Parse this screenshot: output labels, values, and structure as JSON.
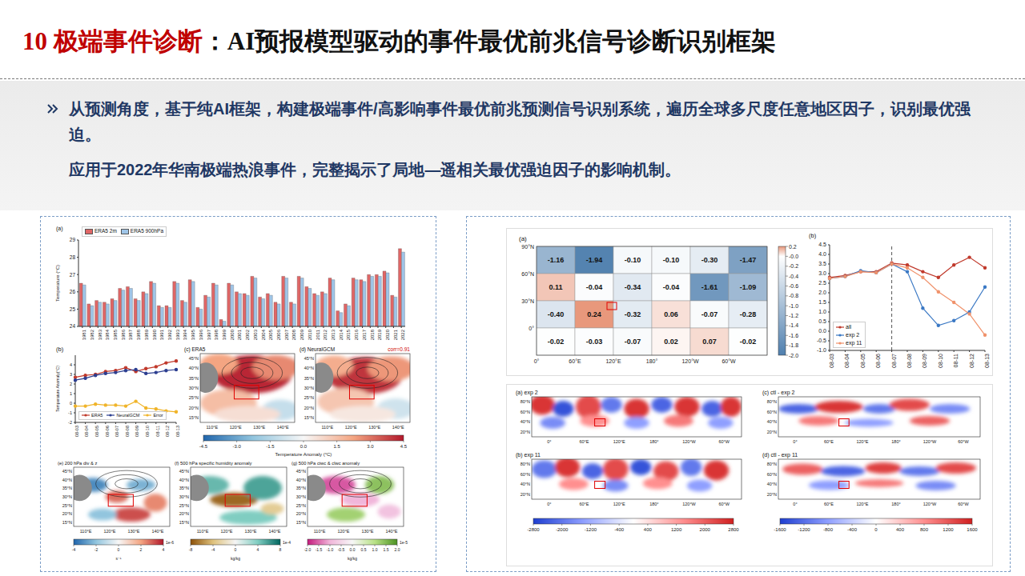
{
  "header": {
    "number": "10 极端事件诊断",
    "title": "：AI预报模型驱动的事件最优前兆信号诊断识别框架"
  },
  "bullets": [
    "从预测角度，基于纯AI框架，构建极端事件/高影响事件最优前兆预测信号识别系统，遍历全球多尺度任意地区因子，识别最优强迫。",
    "应用于2022年华南极端热浪事件，完整揭示了局地—遥相关最优强迫因子的影响机制。"
  ],
  "chart_data": [
    {
      "type": "bar",
      "title": "(a)",
      "ylabel": "Temperature (°C)",
      "categories": [
        "1981",
        "1982",
        "1983",
        "1984",
        "1985",
        "1986",
        "1987",
        "1988",
        "1989",
        "1990",
        "1991",
        "1992",
        "1993",
        "1994",
        "1995",
        "1996",
        "1997",
        "1998",
        "1999",
        "2000",
        "2001",
        "2002",
        "2003",
        "2004",
        "2005",
        "2006",
        "2007",
        "2008",
        "2009",
        "2010",
        "2011",
        "2012",
        "2013",
        "2014",
        "2015",
        "2016",
        "2017",
        "2018",
        "2019",
        "2020",
        "2021",
        "2022"
      ],
      "series": [
        {
          "name": "ERA5 2m",
          "color": "#e06666",
          "values": [
            26.5,
            25.3,
            25.5,
            25.4,
            25.6,
            26.2,
            26.3,
            25.6,
            26.0,
            26.6,
            25.2,
            25.2,
            26.6,
            25.5,
            26.7,
            25.1,
            25.8,
            26.5,
            24.4,
            26.5,
            26.0,
            25.9,
            26.9,
            25.7,
            25.9,
            25.4,
            26.9,
            25.4,
            26.9,
            26.3,
            25.9,
            26.0,
            26.8,
            24.9,
            25.3,
            26.8,
            26.7,
            27.0,
            27.0,
            27.2,
            25.8,
            28.5
          ]
        },
        {
          "name": "ERA5 900hPa",
          "color": "#9fc5e8",
          "values": [
            26.4,
            25.2,
            25.4,
            25.3,
            25.5,
            26.1,
            26.2,
            25.5,
            25.9,
            26.5,
            25.1,
            25.1,
            26.5,
            25.4,
            26.6,
            25.0,
            25.7,
            26.4,
            24.3,
            26.4,
            25.9,
            25.8,
            26.8,
            25.6,
            25.8,
            25.3,
            26.8,
            25.3,
            26.8,
            26.2,
            25.8,
            25.9,
            26.7,
            24.8,
            25.2,
            26.7,
            26.6,
            26.9,
            26.9,
            27.1,
            25.7,
            28.3
          ]
        }
      ],
      "ylim": [
        24,
        29
      ],
      "yticks": [
        24,
        25,
        26,
        27,
        28,
        29
      ],
      "legend": "top left"
    },
    {
      "type": "line",
      "title": "(b)",
      "ylabel": "Temperature Anomaly(°C)",
      "categories": [
        "08-03",
        "08-04",
        "08-05",
        "08-06",
        "08-07",
        "08-08",
        "08-09",
        "08-10",
        "08-11",
        "08-12",
        "08-13"
      ],
      "series": [
        {
          "name": "ERA5",
          "color": "#c0392b",
          "values": [
            2.7,
            2.9,
            3.0,
            3.3,
            3.4,
            3.7,
            3.3,
            3.6,
            3.8,
            4.2,
            4.4
          ]
        },
        {
          "name": "NeuralGCM",
          "color": "#2c3e90",
          "values": [
            2.4,
            2.6,
            2.9,
            3.1,
            3.2,
            3.4,
            3.5,
            3.1,
            3.2,
            3.4,
            3.5
          ]
        },
        {
          "name": "Error",
          "color": "#f0b429",
          "values": [
            -0.3,
            -0.3,
            -0.1,
            -0.2,
            -0.2,
            -0.3,
            0.2,
            -0.5,
            -0.6,
            -0.8,
            -0.9
          ]
        }
      ],
      "ylim": [
        -2,
        5
      ],
      "yticks": [
        -2,
        -1,
        0,
        1,
        2,
        3,
        4
      ],
      "legend": "lower left",
      "marker": "o"
    },
    {
      "type": "map",
      "title": "(c) ERA5",
      "lon_ticks": [
        "110°E",
        "120°E",
        "130°E",
        "140°E"
      ],
      "lat_ticks": [
        "15°N",
        "20°N",
        "25°N",
        "30°N",
        "35°N",
        "40°N",
        "45°N"
      ]
    },
    {
      "type": "map",
      "title": "(d) NeuralGCM",
      "annotation": "corr=0.91",
      "lon_ticks": [
        "110°E",
        "120°E",
        "130°E",
        "140°E"
      ],
      "lat_ticks": [
        "15°N",
        "20°N",
        "25°N",
        "30°N",
        "35°N",
        "40°N",
        "45°N"
      ]
    },
    {
      "type": "colorbar",
      "label": "Temperature Anomaly (°C)",
      "range": [
        -4.5,
        4.5
      ],
      "ticks": [
        -4.5,
        {
          "value": -3,
          "label": "-3.0"
        },
        -1.5,
        {
          "value": 0,
          "label": "0.0"
        },
        1.5,
        {
          "value": 3,
          "label": "3.0"
        },
        4.5
      ]
    },
    {
      "type": "map",
      "title": "(e) 200 hPa div & z",
      "lon_ticks": [
        "110°E",
        "120°E",
        "130°E",
        "140°E"
      ],
      "lat_ticks": [
        "15°N",
        "20°N",
        "25°N",
        "30°N",
        "35°N",
        "40°N",
        "45°N"
      ],
      "colorbar": {
        "unit": "s⁻¹",
        "exponent": "1e-6",
        "range": [
          -4,
          4
        ],
        "ticks": [
          -4,
          -2,
          0,
          2,
          4
        ]
      }
    },
    {
      "type": "map",
      "title": "(f) 500 hPa specific humidity anomaly",
      "lon_ticks": [
        "110°E",
        "120°E",
        "130°E",
        "140°E"
      ],
      "lat_ticks": [
        "15°N",
        "20°N",
        "25°N",
        "30°N",
        "35°N",
        "40°N",
        "45°N"
      ],
      "colorbar": {
        "unit": "kg/kg",
        "exponent": "1e-4",
        "range": [
          -8,
          8
        ],
        "ticks": [
          -8,
          -4,
          0,
          4,
          8
        ]
      }
    },
    {
      "type": "map",
      "title": "(g) 500 hPa ciwc & clwc anomaly",
      "lon_ticks": [
        "110°E",
        "120°E",
        "130°E",
        "140°E"
      ],
      "lat_ticks": [
        "15°N",
        "20°N",
        "25°N",
        "30°N",
        "35°N",
        "40°N",
        "45°N"
      ],
      "colorbar": {
        "unit": "kg/kg",
        "exponent": "1e-5",
        "range": [
          -2,
          2
        ],
        "ticks": [
          {
            "value": -2,
            "label": "-2.0"
          },
          -1.5,
          {
            "value": -1,
            "label": "-1.0"
          },
          -0.5,
          {
            "value": 0,
            "label": "0.0"
          },
          0.5,
          {
            "value": 1,
            "label": "1.0"
          },
          1.5,
          {
            "value": 2,
            "label": "2.0"
          }
        ]
      }
    },
    {
      "type": "heatmap",
      "title": "(a)",
      "row_labels": [
        "90°N",
        "60°N",
        "30°N",
        "0°"
      ],
      "col_labels": [
        "0°",
        "60°E",
        "120°E",
        "180°",
        "120°W",
        "60°W"
      ],
      "values": [
        [
          -1.16,
          -1.94,
          -0.1,
          -0.1,
          -0.3,
          -1.47
        ],
        [
          0.11,
          -0.04,
          -0.34,
          -0.04,
          -1.61,
          -1.09
        ],
        [
          -0.4,
          0.24,
          -0.32,
          0.06,
          -0.07,
          -0.28
        ],
        [
          -0.02,
          -0.03,
          -0.07,
          0.02,
          0.07,
          -0.02
        ]
      ],
      "value_labels": [
        [
          "-1.16",
          "-1.94",
          "-0.10",
          "-0.10",
          "-0.30",
          "-1.47"
        ],
        [
          "0.11",
          "-0.04",
          "-0.34",
          "-0.04",
          "-1.61",
          "-1.09"
        ],
        [
          "-0.40",
          "0.24",
          "-0.32",
          "0.06",
          "-0.07",
          "-0.28"
        ],
        [
          "-0.02",
          "-0.03",
          "-0.07",
          "0.02",
          "0.07",
          "-0.02"
        ]
      ],
      "colorbar": {
        "range": [
          -2.0,
          0.2
        ],
        "ticks": [
          0.2,
          {
            "value": 0,
            "label": "-0.0"
          },
          -0.2,
          -0.4,
          -0.6,
          -0.8,
          {
            "value": -1,
            "label": "-1.0"
          },
          -1.2,
          -1.4,
          -1.6,
          -1.8,
          {
            "value": -2,
            "label": "-2.0"
          }
        ]
      }
    },
    {
      "type": "line",
      "title": "(b)",
      "categories": [
        "08-03",
        "08-04",
        "08-05",
        "08-06",
        "08-07",
        "08-08",
        "08-09",
        "08-10",
        "08-11",
        "08-12",
        "08-13"
      ],
      "series": [
        {
          "name": "all",
          "color": "#c0392b",
          "values": [
            2.8,
            2.9,
            3.1,
            3.1,
            3.55,
            3.45,
            3.1,
            2.8,
            3.45,
            3.85,
            3.3
          ]
        },
        {
          "name": "exp 2",
          "color": "#3a78c4",
          "values": [
            2.75,
            2.85,
            3.15,
            3.05,
            3.5,
            3.1,
            1.2,
            0.3,
            0.55,
            1.0,
            2.3
          ]
        },
        {
          "name": "exp 11",
          "color": "#f0926b",
          "values": [
            2.75,
            2.85,
            3.1,
            3.05,
            3.5,
            3.3,
            2.8,
            2.05,
            1.5,
            0.9,
            -0.2
          ]
        }
      ],
      "ylim": [
        -1,
        4.5
      ],
      "yticks": [
        {
          "value": -1,
          "label": "-1.0"
        },
        -0.5,
        {
          "value": 0,
          "label": "0.0"
        },
        0.5,
        {
          "value": 1,
          "label": "1.0"
        },
        1.5,
        {
          "value": 2,
          "label": "2.0"
        },
        2.5,
        {
          "value": 3,
          "label": "3.0"
        },
        3.5,
        {
          "value": 4,
          "label": "4.0"
        },
        4.5
      ],
      "legend": "lower left",
      "marker": "o",
      "reference_line": "08-07"
    },
    {
      "type": "map",
      "title": "(a) exp 2",
      "lon_ticks": [
        "0°",
        "60°E",
        "120°E",
        "180°",
        "120°W",
        "60°W"
      ],
      "lat_ticks": [
        "20°N",
        "40°N",
        "60°N",
        "80°N"
      ]
    },
    {
      "type": "map",
      "title": "(b) exp 11",
      "lon_ticks": [
        "0°",
        "60°E",
        "120°E",
        "180°",
        "120°W",
        "60°W"
      ],
      "lat_ticks": [
        "20°N",
        "40°N",
        "60°N",
        "80°N"
      ]
    },
    {
      "type": "colorbar",
      "range": [
        -2800,
        2800
      ],
      "ticks": [
        -2800,
        -2000,
        -1200,
        -400,
        400,
        1200,
        2000,
        2800
      ]
    },
    {
      "type": "map",
      "title": "(c) ctl - exp 2",
      "lon_ticks": [
        "0°",
        "60°E",
        "120°E",
        "180°",
        "120°W",
        "60°W"
      ],
      "lat_ticks": [
        "20°N",
        "40°N",
        "60°N",
        "80°N"
      ]
    },
    {
      "type": "map",
      "title": "(d) ctl - exp 11",
      "lon_ticks": [
        "0°",
        "60°E",
        "120°E",
        "180°",
        "120°W",
        "60°W"
      ],
      "lat_ticks": [
        "20°N",
        "40°N",
        "60°N",
        "80°N"
      ]
    },
    {
      "type": "colorbar",
      "range": [
        -1600,
        1600
      ],
      "ticks": [
        -1600,
        -1200,
        -800,
        -400,
        0,
        400,
        800,
        1200,
        1600
      ]
    }
  ]
}
